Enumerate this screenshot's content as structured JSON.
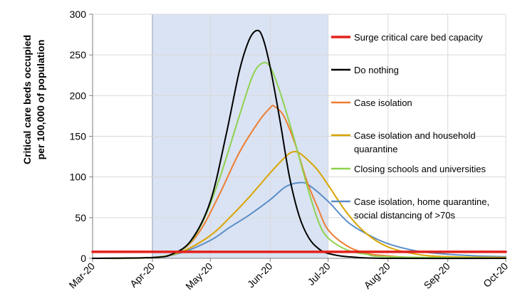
{
  "chart_data": {
    "type": "line",
    "title": "",
    "xlabel": "",
    "ylabel": [
      "Critical care beds occupied",
      "per 100,000 of population"
    ],
    "xlim": [
      "2020-03-01",
      "2020-10-01"
    ],
    "ylim": [
      0,
      300
    ],
    "yticks": [
      0,
      50,
      100,
      150,
      200,
      250,
      300
    ],
    "xtick_labels": [
      "Mar-20",
      "Apr-20",
      "May-20",
      "Jun-20",
      "Jul-20",
      "Aug-20",
      "Sep-20",
      "Oct-20"
    ],
    "grid": true,
    "legend_position": "right",
    "shaded_period": {
      "start": "2020-04-01",
      "end": "2020-07-01",
      "color": "#dae3f3"
    },
    "series": [
      {
        "name": "Surge critical care bed capacity",
        "color": "#e3211c",
        "style": "horizontal",
        "points": [
          [
            "2020-03-01",
            8
          ],
          [
            "2020-10-01",
            8
          ]
        ]
      },
      {
        "name": "Do nothing",
        "color": "#000000",
        "points": [
          [
            "2020-03-01",
            0
          ],
          [
            "2020-04-01",
            1
          ],
          [
            "2020-04-11",
            5
          ],
          [
            "2020-04-21",
            22
          ],
          [
            "2020-05-01",
            70
          ],
          [
            "2020-05-09",
            150
          ],
          [
            "2020-05-16",
            230
          ],
          [
            "2020-05-21",
            268
          ],
          [
            "2020-05-25",
            280
          ],
          [
            "2020-05-28",
            272
          ],
          [
            "2020-06-01",
            235
          ],
          [
            "2020-06-06",
            170
          ],
          [
            "2020-06-11",
            100
          ],
          [
            "2020-06-16",
            52
          ],
          [
            "2020-06-21",
            25
          ],
          [
            "2020-06-26",
            12
          ],
          [
            "2020-07-01",
            6
          ],
          [
            "2020-07-11",
            2
          ],
          [
            "2020-08-01",
            0
          ],
          [
            "2020-10-01",
            0
          ]
        ]
      },
      {
        "name": "Case isolation",
        "color": "#ed7d31",
        "points": [
          [
            "2020-03-01",
            0
          ],
          [
            "2020-04-01",
            1
          ],
          [
            "2020-04-16",
            10
          ],
          [
            "2020-04-26",
            35
          ],
          [
            "2020-05-06",
            80
          ],
          [
            "2020-05-16",
            130
          ],
          [
            "2020-05-26",
            168
          ],
          [
            "2020-06-01",
            185
          ],
          [
            "2020-06-03",
            187
          ],
          [
            "2020-06-08",
            175
          ],
          [
            "2020-06-14",
            140
          ],
          [
            "2020-06-20",
            95
          ],
          [
            "2020-06-26",
            60
          ],
          [
            "2020-07-01",
            35
          ],
          [
            "2020-07-11",
            15
          ],
          [
            "2020-07-21",
            6
          ],
          [
            "2020-08-01",
            3
          ],
          [
            "2020-08-16",
            1
          ],
          [
            "2020-10-01",
            0
          ]
        ]
      },
      {
        "name": "Case isolation and household quarantine",
        "color": "#d9a400",
        "points": [
          [
            "2020-03-01",
            0
          ],
          [
            "2020-04-01",
            1
          ],
          [
            "2020-04-16",
            8
          ],
          [
            "2020-05-01",
            28
          ],
          [
            "2020-05-11",
            50
          ],
          [
            "2020-05-21",
            75
          ],
          [
            "2020-06-01",
            105
          ],
          [
            "2020-06-09",
            125
          ],
          [
            "2020-06-13",
            131
          ],
          [
            "2020-06-17",
            128
          ],
          [
            "2020-06-25",
            110
          ],
          [
            "2020-07-01",
            90
          ],
          [
            "2020-07-11",
            55
          ],
          [
            "2020-07-21",
            30
          ],
          [
            "2020-08-01",
            14
          ],
          [
            "2020-08-16",
            5
          ],
          [
            "2020-09-01",
            2
          ],
          [
            "2020-10-01",
            1
          ]
        ]
      },
      {
        "name": "Closing schools and universities",
        "color": "#8fd14f",
        "points": [
          [
            "2020-03-01",
            0
          ],
          [
            "2020-04-01",
            1
          ],
          [
            "2020-04-16",
            10
          ],
          [
            "2020-04-26",
            40
          ],
          [
            "2020-05-06",
            100
          ],
          [
            "2020-05-16",
            175
          ],
          [
            "2020-05-23",
            225
          ],
          [
            "2020-05-28",
            240
          ],
          [
            "2020-06-01",
            235
          ],
          [
            "2020-06-06",
            205
          ],
          [
            "2020-06-13",
            150
          ],
          [
            "2020-06-20",
            90
          ],
          [
            "2020-06-26",
            45
          ],
          [
            "2020-07-01",
            25
          ],
          [
            "2020-07-11",
            10
          ],
          [
            "2020-07-21",
            5
          ],
          [
            "2020-08-01",
            2
          ],
          [
            "2020-10-01",
            0
          ]
        ]
      },
      {
        "name": "Case isolation, home quarantine, social distancing of >70s",
        "color": "#5b8ec7",
        "points": [
          [
            "2020-03-01",
            0
          ],
          [
            "2020-04-01",
            1
          ],
          [
            "2020-04-16",
            7
          ],
          [
            "2020-05-01",
            22
          ],
          [
            "2020-05-11",
            38
          ],
          [
            "2020-05-21",
            53
          ],
          [
            "2020-06-01",
            72
          ],
          [
            "2020-06-09",
            88
          ],
          [
            "2020-06-16",
            93
          ],
          [
            "2020-06-21",
            90
          ],
          [
            "2020-07-01",
            70
          ],
          [
            "2020-07-11",
            45
          ],
          [
            "2020-07-21",
            30
          ],
          [
            "2020-08-01",
            18
          ],
          [
            "2020-08-16",
            9
          ],
          [
            "2020-09-01",
            5
          ],
          [
            "2020-09-16",
            3
          ],
          [
            "2020-10-01",
            2
          ]
        ]
      }
    ]
  }
}
